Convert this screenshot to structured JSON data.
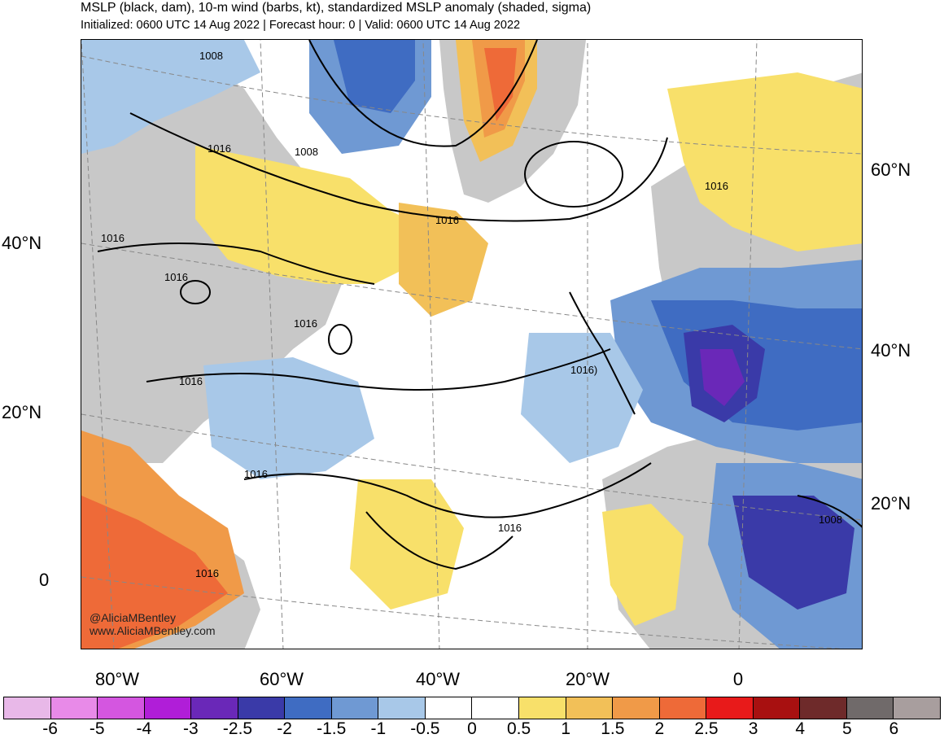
{
  "header": {
    "title": "MSLP (black, dam), 10-m wind (barbs, kt), standardized MSLP anomaly (shaded, sigma)",
    "subtitle": "Initialized: 0600 UTC 14 Aug 2022 | Forecast hour: 0 | Valid: 0600 UTC 14 Aug 2022"
  },
  "axes": {
    "lat_left": [
      "40°N",
      "20°N",
      "0"
    ],
    "lat_right": [
      "60°N",
      "40°N",
      "20°N"
    ],
    "lon_bottom": [
      "80°W",
      "60°W",
      "40°W",
      "20°W",
      "0"
    ]
  },
  "isobars": [
    "1008",
    "1008",
    "1016",
    "1016",
    "1016",
    "1016",
    "1016",
    "1016",
    "1016",
    "1016)",
    "1016",
    "1016",
    "1016",
    "1008"
  ],
  "credit": {
    "twitter": "@AliciaMBentley",
    "site": "www.AliciaMBentley.com"
  },
  "colorbar": {
    "colors": [
      "#e8b8e8",
      "#e88ae8",
      "#d456e0",
      "#b01ed8",
      "#6a28b8",
      "#3a3aa8",
      "#3f6cc2",
      "#6f99d3",
      "#a8c8e8",
      "#ffffff",
      "#ffffff",
      "#f8e06a",
      "#f2c058",
      "#f09a48",
      "#ee6a38",
      "#e81a1a",
      "#a81010",
      "#6e2a2a",
      "#706a6a",
      "#a89e9e"
    ],
    "labels": [
      "-6",
      "-5",
      "-4",
      "-3",
      "-2.5",
      "-2",
      "-1.5",
      "-1",
      "-0.5",
      "0",
      "0.5",
      "1",
      "1.5",
      "2",
      "2.5",
      "3",
      "4",
      "5",
      "6"
    ]
  },
  "palette": {
    "land_gray": "#c8c8c8",
    "yellow": "#f8e06a",
    "light_orange": "#f2c058",
    "orange": "#f09a48",
    "red": "#ee6a38",
    "light_blue": "#a8c8e8",
    "mid_blue": "#6f99d3",
    "blue": "#3f6cc2",
    "dark_blue": "#3a3aa8",
    "purple": "#6a28b8"
  }
}
